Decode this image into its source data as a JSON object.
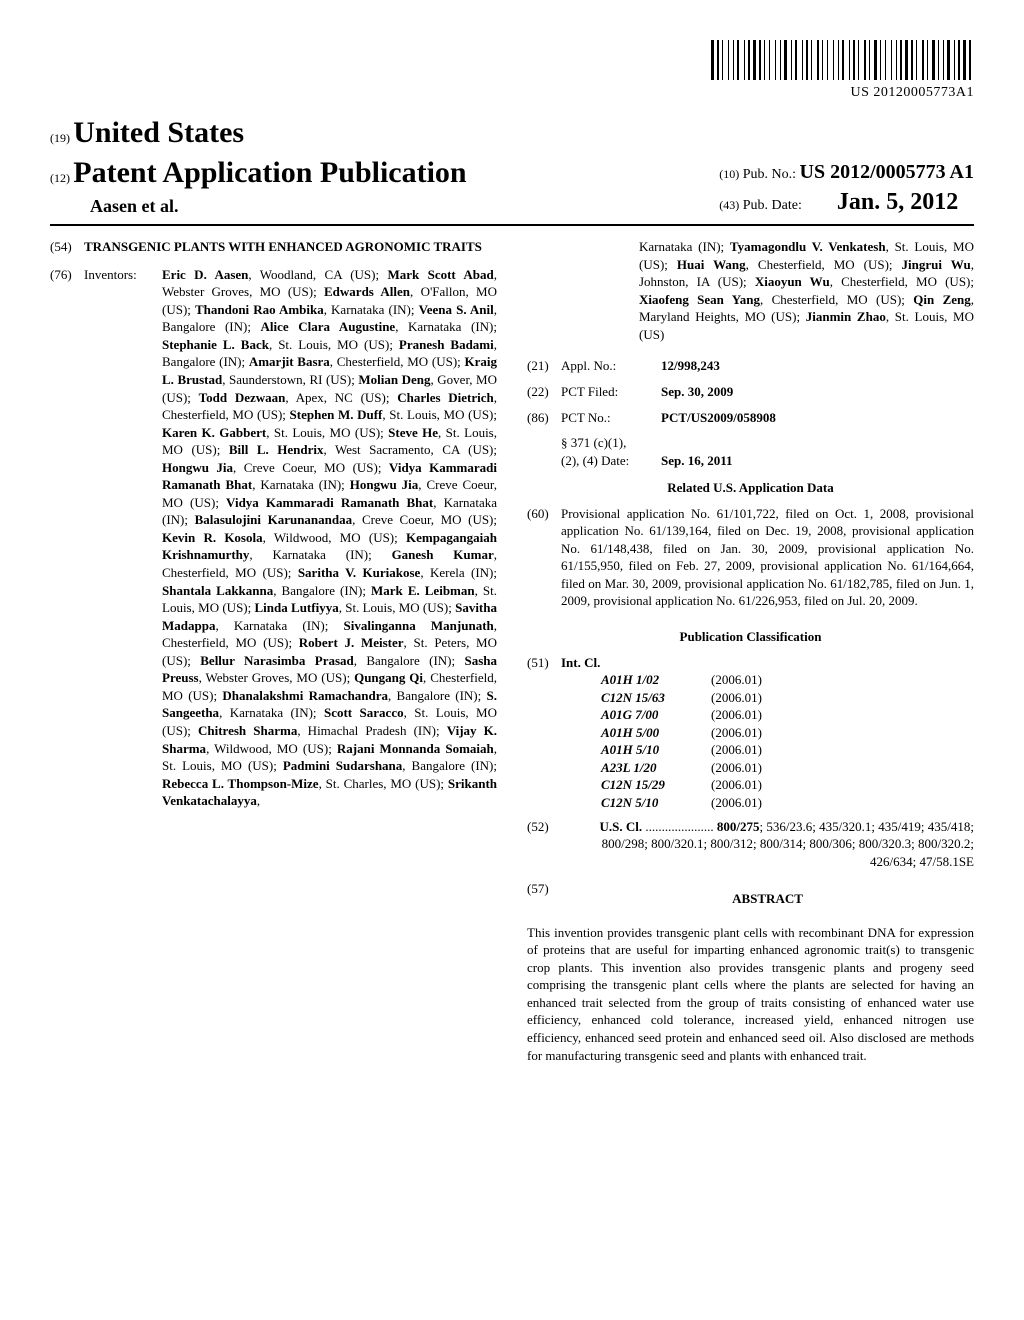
{
  "top": {
    "doc_number": "US 20120005773A1"
  },
  "header": {
    "code19": "(19)",
    "country": "United States",
    "code12": "(12)",
    "pub_type": "Patent Application Publication",
    "authors": "Aasen et al.",
    "code10": "(10)",
    "pub_no_label": "Pub. No.:",
    "pub_no": "US 2012/0005773 A1",
    "code43": "(43)",
    "pub_date_label": "Pub. Date:",
    "pub_date": "Jan. 5, 2012"
  },
  "title": {
    "code": "(54)",
    "text": "TRANSGENIC PLANTS WITH ENHANCED AGRONOMIC TRAITS"
  },
  "inventors": {
    "code": "(76)",
    "label": "Inventors:",
    "list_left": "<b>Eric D. Aasen</b>, Woodland, CA (US); <b>Mark Scott Abad</b>, Webster Groves, MO (US); <b>Edwards Allen</b>, O'Fallon, MO (US); <b>Thandoni Rao Ambika</b>, Karnataka (IN); <b>Veena S. Anil</b>, Bangalore (IN); <b>Alice Clara Augustine</b>, Karnataka (IN); <b>Stephanie L. Back</b>, St. Louis, MO (US); <b>Pranesh Badami</b>, Bangalore (IN); <b>Amarjit Basra</b>, Chesterfield, MO (US); <b>Kraig L. Brustad</b>, Saunderstown, RI (US); <b>Molian Deng</b>, Gover, MO (US); <b>Todd Dezwaan</b>, Apex, NC (US); <b>Charles Dietrich</b>, Chesterfield, MO (US); <b>Stephen M. Duff</b>, St. Louis, MO (US); <b>Karen K. Gabbert</b>, St. Louis, MO (US); <b>Steve He</b>, St. Louis, MO (US); <b>Bill L. Hendrix</b>, West Sacramento, CA (US); <b>Hongwu Jia</b>, Creve Coeur, MO (US); <b>Vidya Kammaradi Ramanath Bhat</b>, Karnataka (IN); <b>Hongwu Jia</b>, Creve Coeur, MO (US); <b>Vidya Kammaradi Ramanath Bhat</b>, Karnataka (IN); <b>Balasulojini Karunanandaa</b>, Creve Coeur, MO (US); <b>Kevin R. Kosola</b>, Wildwood, MO (US); <b>Kempagangaiah Krishnamurthy</b>, Karnataka (IN); <b>Ganesh Kumar</b>, Chesterfield, MO (US); <b>Saritha V. Kuriakose</b>, Kerela (IN); <b>Shantala Lakkanna</b>, Bangalore (IN); <b>Mark E. Leibman</b>, St. Louis, MO (US); <b>Linda Lutfiyya</b>, St. Louis, MO (US); <b>Savitha Madappa</b>, Karnataka (IN); <b>Sivalinganna Manjunath</b>, Chesterfield, MO (US); <b>Robert J. Meister</b>, St. Peters, MO (US); <b>Bellur Narasimba Prasad</b>, Bangalore (IN); <b>Sasha Preuss</b>, Webster Groves, MO (US); <b>Qungang Qi</b>, Chesterfield, MO (US); <b>Dhanalakshmi Ramachandra</b>, Bangalore (IN); <b>S. Sangeetha</b>, Karnataka (IN); <b>Scott Saracco</b>, St. Louis, MO (US); <b>Chitresh Sharma</b>, Himachal Pradesh (IN); <b>Vijay K. Sharma</b>, Wildwood, MO (US); <b>Rajani Monnanda Somaiah</b>, St. Louis, MO (US); <b>Padmini Sudarshana</b>, Bangalore (IN); <b>Rebecca L. Thompson-Mize</b>, St. Charles, MO (US); <b>Srikanth Venkatachalayya</b>,",
    "list_right": "Karnataka (IN); <b>Tyamagondlu V. Venkatesh</b>, St. Louis, MO (US); <b>Huai Wang</b>, Chesterfield, MO (US); <b>Jingrui Wu</b>, Johnston, IA (US); <b>Xiaoyun Wu</b>, Chesterfield, MO (US); <b>Xiaofeng Sean Yang</b>, Chesterfield, MO (US); <b>Qin Zeng</b>, Maryland Heights, MO (US); <b>Jianmin Zhao</b>, St. Louis, MO (US)"
  },
  "filing": {
    "r21": {
      "code": "(21)",
      "label": "Appl. No.:",
      "value": "12/998,243"
    },
    "r22": {
      "code": "(22)",
      "label": "PCT Filed:",
      "value": "Sep. 30, 2009"
    },
    "r86": {
      "code": "(86)",
      "label": "PCT No.:",
      "value": "PCT/US2009/058908"
    },
    "sub1": "§ 371 (c)(1),",
    "sub2": "(2), (4) Date:",
    "sub_val": "Sep. 16, 2011"
  },
  "related": {
    "heading": "Related U.S. Application Data",
    "code": "(60)",
    "text": "Provisional application No. 61/101,722, filed on Oct. 1, 2008, provisional application No. 61/139,164, filed on Dec. 19, 2008, provisional application No. 61/148,438, filed on Jan. 30, 2009, provisional application No. 61/155,950, filed on Feb. 27, 2009, provisional application No. 61/164,664, filed on Mar. 30, 2009, provisional application No. 61/182,785, filed on Jun. 1, 2009, provisional application No. 61/226,953, filed on Jul. 20, 2009."
  },
  "classification": {
    "heading": "Publication Classification",
    "code51": "(51)",
    "intcl_label": "Int. Cl.",
    "rows": [
      {
        "code": "A01H 1/02",
        "date": "(2006.01)"
      },
      {
        "code": "C12N 15/63",
        "date": "(2006.01)"
      },
      {
        "code": "A01G 7/00",
        "date": "(2006.01)"
      },
      {
        "code": "A01H 5/00",
        "date": "(2006.01)"
      },
      {
        "code": "A01H 5/10",
        "date": "(2006.01)"
      },
      {
        "code": "A23L 1/20",
        "date": "(2006.01)"
      },
      {
        "code": "C12N 15/29",
        "date": "(2006.01)"
      },
      {
        "code": "C12N 5/10",
        "date": "(2006.01)"
      }
    ],
    "code52": "(52)",
    "uscl_label": "U.S. Cl.",
    "uscl_lead": "800/275",
    "uscl_rest": "; 536/23.6; 435/320.1; 435/419; 435/418; 800/298; 800/320.1; 800/312; 800/314; 800/306; 800/320.3; 800/320.2; 426/634; 47/58.1SE"
  },
  "abstract": {
    "code": "(57)",
    "heading": "ABSTRACT",
    "text": "This invention provides transgenic plant cells with recombinant DNA for expression of proteins that are useful for imparting enhanced agronomic trait(s) to transgenic crop plants. This invention also provides transgenic plants and progeny seed comprising the transgenic plant cells where the plants are selected for having an enhanced trait selected from the group of traits consisting of enhanced water use efficiency, enhanced cold tolerance, increased yield, enhanced nitrogen use efficiency, enhanced seed protein and enhanced seed oil. Also disclosed are methods for manufacturing transgenic seed and plants with enhanced trait."
  },
  "barcode_widths": [
    3,
    1,
    2,
    1,
    1,
    3,
    1,
    2,
    1,
    1,
    2,
    3,
    1,
    1,
    2,
    1,
    3,
    1,
    2,
    1,
    1,
    2,
    1,
    3,
    1,
    2,
    1,
    1,
    3,
    2,
    1,
    1,
    2,
    3,
    1,
    1,
    2,
    1,
    1,
    3,
    2,
    1,
    1,
    2,
    1,
    3,
    1,
    2,
    1,
    1,
    2,
    3,
    1,
    1,
    2,
    1,
    1,
    3,
    2,
    1,
    1,
    2,
    3,
    1,
    1,
    2,
    1,
    3,
    1,
    2,
    1,
    1,
    2,
    1,
    3,
    1,
    2,
    1,
    1,
    3,
    2,
    1,
    1,
    2,
    3,
    1,
    1,
    2,
    1,
    1,
    3,
    2,
    1,
    1,
    2,
    1,
    3,
    1,
    2,
    1
  ]
}
